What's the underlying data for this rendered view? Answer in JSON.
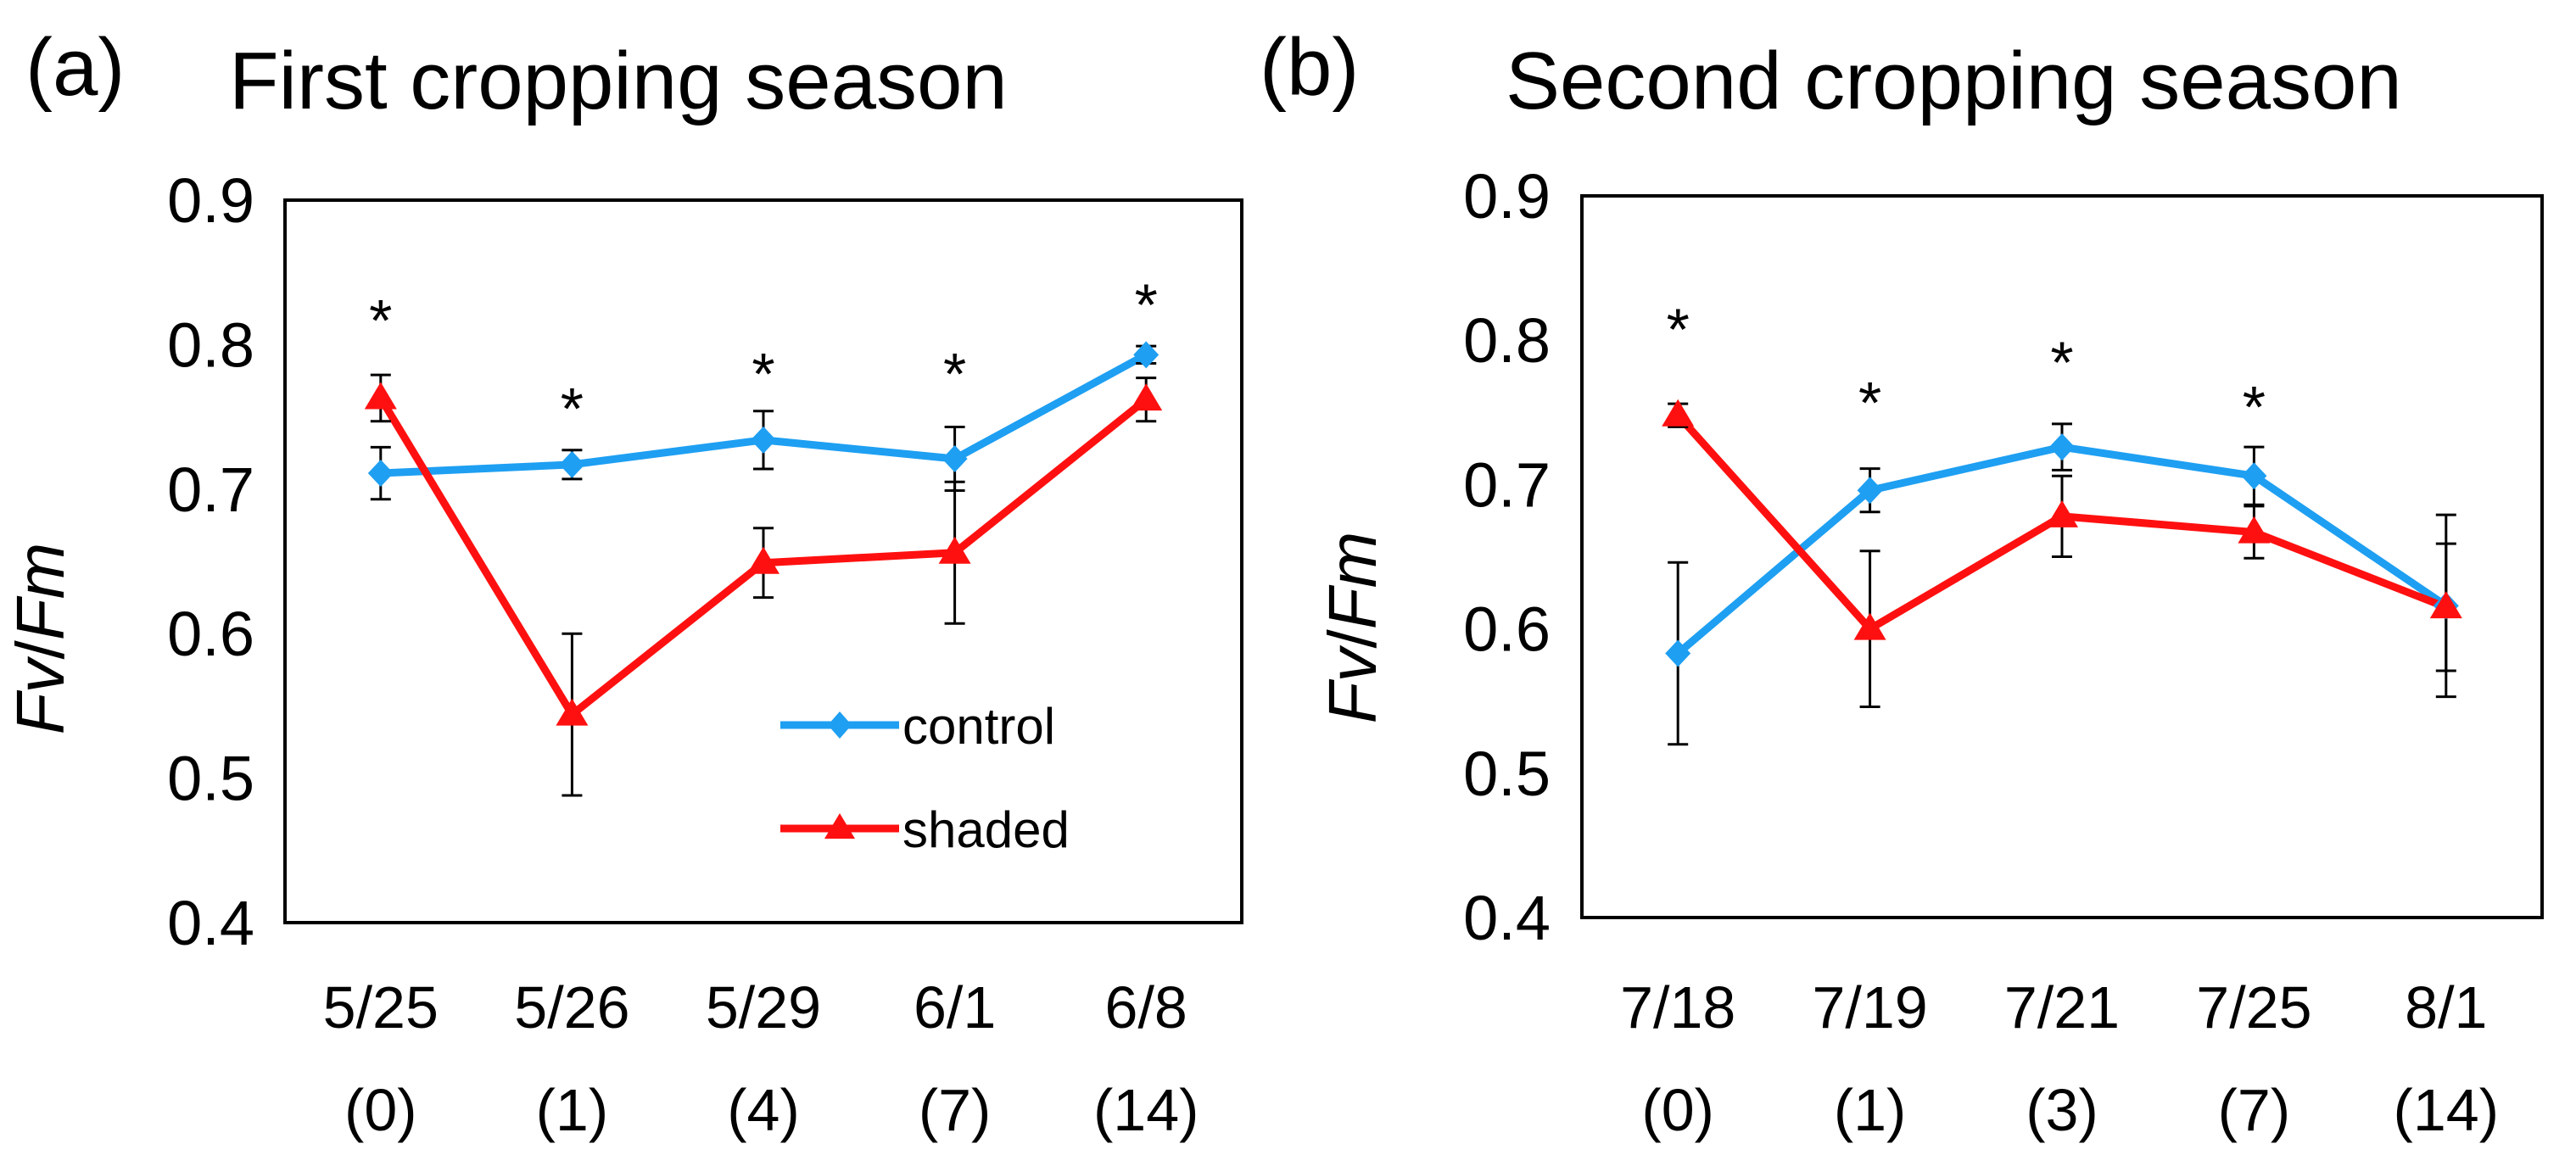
{
  "chart_data": [
    {
      "type": "line",
      "panel_label": "(a)",
      "title": "First cropping season",
      "ylabel_italic_1": "Fv",
      "ylabel_sep": "/",
      "ylabel_italic_2": "Fm",
      "xlabel": "",
      "ylim": [
        0.4,
        0.9
      ],
      "yticks": [
        "0.4",
        "0.5",
        "0.6",
        "0.7",
        "0.8",
        "0.9"
      ],
      "categories": [
        "5/25",
        "5/26",
        "5/29",
        "6/1",
        "6/8"
      ],
      "category_sublabels": [
        "(0)",
        "(1)",
        "(4)",
        "(7)",
        "(14)"
      ],
      "significance": [
        "*",
        "*",
        "*",
        "*",
        "*"
      ],
      "significance_y": [
        0.826,
        0.765,
        0.789,
        0.789,
        0.837
      ],
      "legend": {
        "position": "bottom-right"
      },
      "series": [
        {
          "name": "control",
          "color": "#1e9ff2",
          "marker": "diamond",
          "values": [
            0.711,
            0.717,
            0.734,
            0.721,
            0.793
          ],
          "errors": [
            0.018,
            0.01,
            0.02,
            0.022,
            0.006
          ]
        },
        {
          "name": "shaded",
          "color": "#ff1010",
          "marker": "triangle",
          "values": [
            0.763,
            0.544,
            0.649,
            0.656,
            0.762
          ],
          "errors": [
            0.016,
            0.056,
            0.024,
            0.049,
            0.015
          ]
        }
      ]
    },
    {
      "type": "line",
      "panel_label": "(b)",
      "title": "Second cropping season",
      "ylabel_italic_1": "Fv",
      "ylabel_sep": "/",
      "ylabel_italic_2": "Fm",
      "xlabel": "",
      "ylim": [
        0.4,
        0.9
      ],
      "yticks": [
        "0.4",
        "0.5",
        "0.6",
        "0.7",
        "0.8",
        "0.9"
      ],
      "categories": [
        "7/18",
        "7/19",
        "7/21",
        "7/25",
        "8/1"
      ],
      "category_sublabels": [
        "(0)",
        "(1)",
        "(3)",
        "(7)",
        "(14)"
      ],
      "significance": [
        "*",
        "*",
        "*",
        "*",
        ""
      ],
      "significance_y": [
        0.817,
        0.766,
        0.794,
        0.763,
        0
      ],
      "legend": null,
      "series": [
        {
          "name": "control",
          "color": "#1e9ff2",
          "marker": "diamond",
          "values": [
            0.583,
            0.696,
            0.726,
            0.706,
            0.616
          ],
          "errors": [
            0.063,
            0.015,
            0.016,
            0.02,
            0.063
          ]
        },
        {
          "name": "shaded",
          "color": "#ff1010",
          "marker": "triangle",
          "values": [
            0.748,
            0.6,
            0.678,
            0.667,
            0.615
          ],
          "errors": [
            0.008,
            0.054,
            0.028,
            0.018,
            0.044
          ]
        }
      ]
    }
  ]
}
